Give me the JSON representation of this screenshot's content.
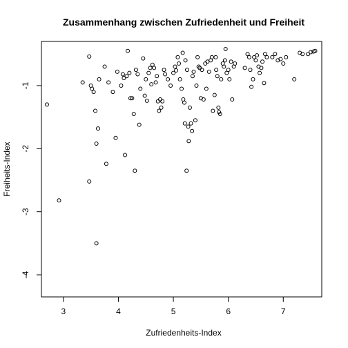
{
  "chart_data": {
    "type": "scatter",
    "title": "Zusammenhang zwischen Zufriedenheit und Freiheit",
    "xlabel": "Zufriedenheits-Index",
    "ylabel": "Freiheits-Index",
    "xlim": [
      2.6,
      7.7
    ],
    "ylim": [
      -4.35,
      -0.3
    ],
    "xticks": [
      3,
      4,
      5,
      6,
      7
    ],
    "yticks": [
      -1,
      -2,
      -3,
      -4
    ],
    "grid": false,
    "legend": "none",
    "points": [
      [
        2.7,
        -1.3
      ],
      [
        2.92,
        -2.82
      ],
      [
        3.35,
        -0.95
      ],
      [
        3.47,
        -0.54
      ],
      [
        3.5,
        -1.0
      ],
      [
        3.52,
        -1.05
      ],
      [
        3.55,
        -1.1
      ],
      [
        3.58,
        -1.4
      ],
      [
        3.6,
        -1.92
      ],
      [
        3.63,
        -1.68
      ],
      [
        3.6,
        -3.5
      ],
      [
        3.47,
        -2.52
      ],
      [
        3.78,
        -2.24
      ],
      [
        3.82,
        -0.95
      ],
      [
        3.75,
        -0.7
      ],
      [
        3.65,
        -0.9
      ],
      [
        3.9,
        -1.1
      ],
      [
        3.95,
        -1.83
      ],
      [
        3.98,
        -0.78
      ],
      [
        4.05,
        -1.0
      ],
      [
        4.08,
        -0.82
      ],
      [
        4.1,
        -0.88
      ],
      [
        4.12,
        -2.1
      ],
      [
        4.15,
        -0.85
      ],
      [
        4.17,
        -0.45
      ],
      [
        4.2,
        -0.8
      ],
      [
        4.22,
        -1.2
      ],
      [
        4.25,
        -1.2
      ],
      [
        4.28,
        -1.45
      ],
      [
        4.3,
        -2.35
      ],
      [
        4.32,
        -0.75
      ],
      [
        4.35,
        -0.82
      ],
      [
        4.38,
        -1.62
      ],
      [
        4.4,
        -1.05
      ],
      [
        4.45,
        -0.57
      ],
      [
        4.48,
        -1.16
      ],
      [
        4.5,
        -0.9
      ],
      [
        4.52,
        -1.24
      ],
      [
        4.55,
        -0.8
      ],
      [
        4.58,
        -0.72
      ],
      [
        4.6,
        -0.98
      ],
      [
        4.62,
        -0.67
      ],
      [
        4.65,
        -0.72
      ],
      [
        4.68,
        -0.95
      ],
      [
        4.7,
        -0.85
      ],
      [
        4.72,
        -1.25
      ],
      [
        4.74,
        -1.4
      ],
      [
        4.76,
        -1.22
      ],
      [
        4.78,
        -1.35
      ],
      [
        4.8,
        -1.25
      ],
      [
        4.83,
        -0.75
      ],
      [
        4.85,
        -0.82
      ],
      [
        4.9,
        -0.9
      ],
      [
        4.95,
        -1.0
      ],
      [
        5.0,
        -0.8
      ],
      [
        5.03,
        -0.7
      ],
      [
        5.05,
        -0.76
      ],
      [
        5.08,
        -0.55
      ],
      [
        5.1,
        -0.65
      ],
      [
        5.12,
        -0.9
      ],
      [
        5.15,
        -1.05
      ],
      [
        5.17,
        -0.48
      ],
      [
        5.18,
        -1.22
      ],
      [
        5.2,
        -1.27
      ],
      [
        5.21,
        -1.6
      ],
      [
        5.22,
        -0.6
      ],
      [
        5.24,
        -2.35
      ],
      [
        5.25,
        -0.75
      ],
      [
        5.27,
        -1.65
      ],
      [
        5.28,
        -1.88
      ],
      [
        5.3,
        -1.35
      ],
      [
        5.32,
        -1.6
      ],
      [
        5.34,
        -1.72
      ],
      [
        5.35,
        -0.85
      ],
      [
        5.37,
        -0.78
      ],
      [
        5.4,
        -1.55
      ],
      [
        5.42,
        -1.0
      ],
      [
        5.44,
        -0.55
      ],
      [
        5.46,
        -0.7
      ],
      [
        5.48,
        -0.72
      ],
      [
        5.5,
        -1.2
      ],
      [
        5.52,
        -0.75
      ],
      [
        5.55,
        -1.22
      ],
      [
        5.58,
        -0.65
      ],
      [
        5.6,
        -1.05
      ],
      [
        5.62,
        -0.62
      ],
      [
        5.65,
        -0.78
      ],
      [
        5.68,
        -0.6
      ],
      [
        5.7,
        -0.55
      ],
      [
        5.72,
        -1.4
      ],
      [
        5.75,
        -1.15
      ],
      [
        5.77,
        -0.55
      ],
      [
        5.78,
        -0.75
      ],
      [
        5.8,
        -0.85
      ],
      [
        5.82,
        -1.35
      ],
      [
        5.83,
        -1.42
      ],
      [
        5.85,
        -1.45
      ],
      [
        5.87,
        -0.9
      ],
      [
        5.9,
        -0.65
      ],
      [
        5.92,
        -0.7
      ],
      [
        5.94,
        -0.6
      ],
      [
        5.95,
        -0.42
      ],
      [
        5.97,
        -0.8
      ],
      [
        6.0,
        -0.75
      ],
      [
        6.02,
        -0.9
      ],
      [
        6.05,
        -0.62
      ],
      [
        6.07,
        -1.22
      ],
      [
        6.1,
        -0.7
      ],
      [
        6.12,
        -0.65
      ],
      [
        6.3,
        -0.72
      ],
      [
        6.35,
        -0.5
      ],
      [
        6.38,
        -0.55
      ],
      [
        6.4,
        -0.75
      ],
      [
        6.42,
        -1.02
      ],
      [
        6.45,
        -0.9
      ],
      [
        6.47,
        -0.55
      ],
      [
        6.5,
        -0.6
      ],
      [
        6.52,
        -0.52
      ],
      [
        6.55,
        -0.7
      ],
      [
        6.57,
        -0.8
      ],
      [
        6.6,
        -0.72
      ],
      [
        6.62,
        -0.62
      ],
      [
        6.65,
        -0.96
      ],
      [
        6.67,
        -0.5
      ],
      [
        6.7,
        -0.55
      ],
      [
        6.8,
        -0.55
      ],
      [
        6.85,
        -0.5
      ],
      [
        6.9,
        -0.6
      ],
      [
        6.95,
        -0.58
      ],
      [
        7.0,
        -0.65
      ],
      [
        7.05,
        -0.55
      ],
      [
        7.2,
        -0.9
      ],
      [
        7.3,
        -0.48
      ],
      [
        7.35,
        -0.5
      ],
      [
        7.45,
        -0.5
      ],
      [
        7.5,
        -0.47
      ],
      [
        7.55,
        -0.46
      ],
      [
        7.58,
        -0.45
      ]
    ]
  }
}
